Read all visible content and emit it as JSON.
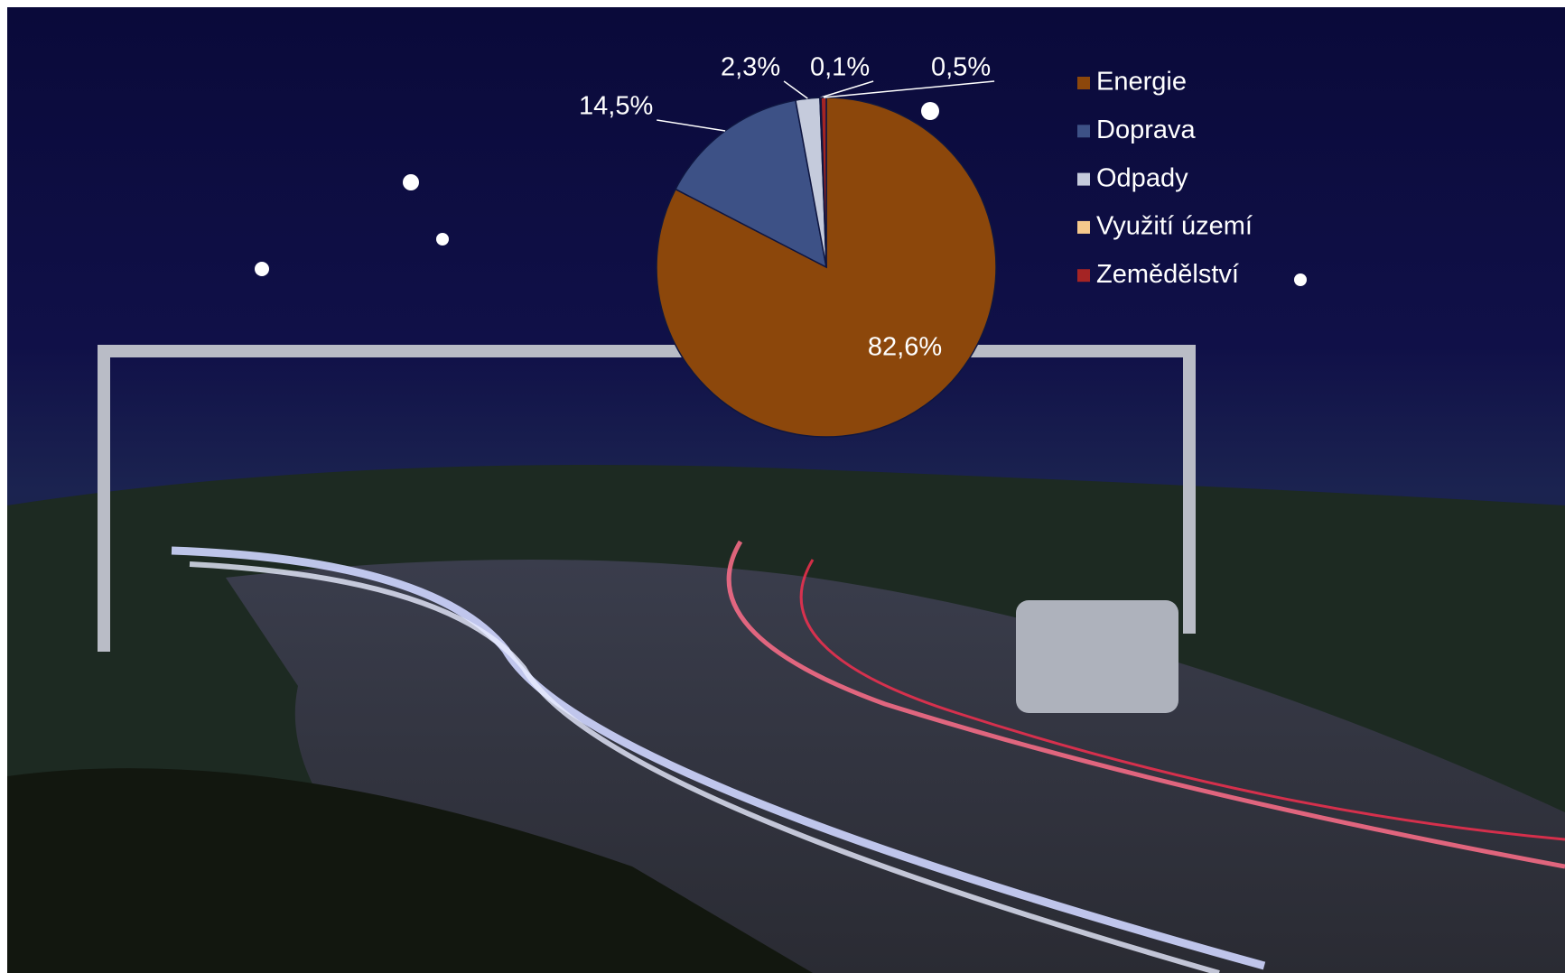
{
  "chart_data": {
    "type": "pie",
    "categories": [
      "Energie",
      "Doprava",
      "Odpady",
      "Využití území",
      "Zemědělství"
    ],
    "values": [
      82.6,
      14.5,
      2.3,
      0.1,
      0.5
    ],
    "value_labels": [
      "82,6%",
      "14,5%",
      "2,3%",
      "0,1%",
      "0,5%"
    ],
    "colors": [
      "#8c470b",
      "#3d5186",
      "#c5cbdc",
      "#f6c98c",
      "#a52424"
    ],
    "legend": "right"
  }
}
